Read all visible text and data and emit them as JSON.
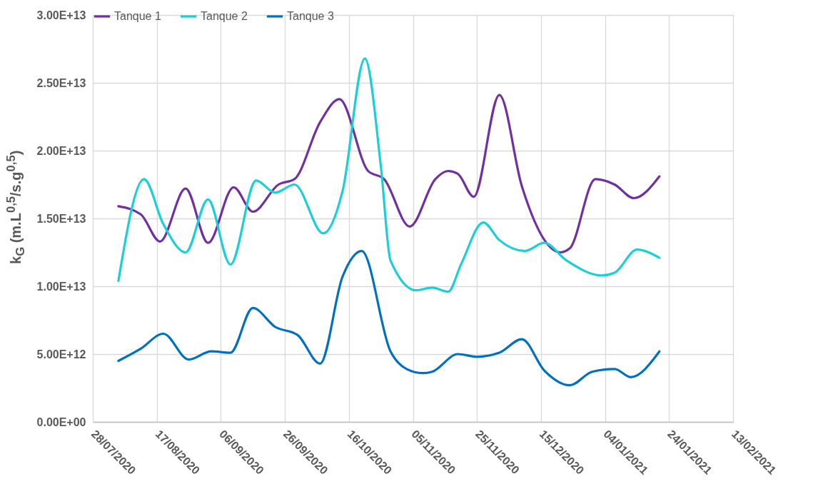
{
  "chart_data": {
    "type": "line",
    "ylabel": "k$_{G}$ (m.L$^{0,5}$/s.g$^{0,5}$)",
    "xlim": [
      "2020-07-28",
      "2021-02-13"
    ],
    "xticks": [
      {
        "value": "2020-07-28",
        "label": "28/07/2020"
      },
      {
        "value": "2020-08-17",
        "label": "17/08/2020"
      },
      {
        "value": "2020-09-06",
        "label": "06/09/2020"
      },
      {
        "value": "2020-09-26",
        "label": "26/09/2020"
      },
      {
        "value": "2020-10-16",
        "label": "16/10/2020"
      },
      {
        "value": "2020-11-05",
        "label": "05/11/2020"
      },
      {
        "value": "2020-11-25",
        "label": "25/11/2020"
      },
      {
        "value": "2020-12-15",
        "label": "15/12/2020"
      },
      {
        "value": "2021-01-04",
        "label": "04/01/2021"
      },
      {
        "value": "2021-01-24",
        "label": "24/01/2021"
      },
      {
        "value": "2021-02-13",
        "label": "13/02/2021"
      }
    ],
    "ylim": [
      0,
      30000000000000
    ],
    "yticks": [
      {
        "value": 0,
        "label": "0.00E+00"
      },
      {
        "value": 5000000000000,
        "label": "5.00E+12"
      },
      {
        "value": 10000000000000,
        "label": "1.00E+13"
      },
      {
        "value": 15000000000000,
        "label": "1.50E+13"
      },
      {
        "value": 20000000000000,
        "label": "2.00E+13"
      },
      {
        "value": 25000000000000,
        "label": "2.50E+13"
      },
      {
        "value": 30000000000000,
        "label": "3.00E+13"
      }
    ],
    "grid": true,
    "legend": "top",
    "marker": "none",
    "line_style": "solid",
    "series": [
      {
        "name": "Tanque 1",
        "color": "#7030a0",
        "x": [
          "2020-08-05",
          "2020-08-12",
          "2020-08-18",
          "2020-08-26",
          "2020-09-02",
          "2020-09-10",
          "2020-09-16",
          "2020-09-24",
          "2020-09-29",
          "2020-10-07",
          "2020-10-13",
          "2020-10-22",
          "2020-10-27",
          "2020-11-04",
          "2020-11-12",
          "2020-11-16",
          "2020-11-19",
          "2020-11-24",
          "2020-12-02",
          "2020-12-09",
          "2020-12-21",
          "2020-12-24",
          "2021-01-01",
          "2021-01-07",
          "2021-01-13",
          "2021-01-21"
        ],
        "values": [
          15900000000000.0,
          15300000000000.0,
          13300000000000.0,
          17200000000000.0,
          13200000000000.0,
          17300000000000.0,
          15500000000000.0,
          17500000000000.0,
          17900000000000.0,
          22100000000000.0,
          23800000000000.0,
          18500000000000.0,
          17900000000000.0,
          14400000000000.0,
          17900000000000.0,
          18500000000000.0,
          18300000000000.0,
          16600000000000.0,
          24100000000000.0,
          17400000000000.0,
          12500000000000.0,
          12800000000000.0,
          17900000000000.0,
          17500000000000.0,
          16500000000000.0,
          18100000000000.0
        ]
      },
      {
        "name": "Tanque 2",
        "color": "#1acfd6",
        "x": [
          "2020-08-05",
          "2020-08-13",
          "2020-08-19",
          "2020-08-26",
          "2020-09-02",
          "2020-09-09",
          "2020-09-17",
          "2020-09-23",
          "2020-09-29",
          "2020-10-08",
          "2020-10-14",
          "2020-10-21",
          "2020-10-26",
          "2020-10-29",
          "2020-11-06",
          "2020-11-11",
          "2020-11-16",
          "2020-11-20",
          "2020-11-27",
          "2020-12-02",
          "2020-12-10",
          "2020-12-16",
          "2020-12-23",
          "2021-01-03",
          "2021-01-07",
          "2021-01-14",
          "2021-01-21"
        ],
        "values": [
          10400000000000.0,
          17900000000000.0,
          14600000000000.0,
          12500000000000.0,
          16400000000000.0,
          11600000000000.0,
          17800000000000.0,
          16900000000000.0,
          17500000000000.0,
          13900000000000.0,
          17000000000000.0,
          26800000000000.0,
          18800000000000.0,
          11900000000000.0,
          9700000000000.0,
          9900000000000.0,
          9600000000000.0,
          11600000000000.0,
          14700000000000.0,
          13400000000000.0,
          12600000000000.0,
          13200000000000.0,
          11900000000000.0,
          10800000000000.0,
          11000000000000.0,
          12700000000000.0,
          12100000000000.0
        ]
      },
      {
        "name": "Tanque 3",
        "color": "#0070c0",
        "x": [
          "2020-08-05",
          "2020-08-12",
          "2020-08-19",
          "2020-08-27",
          "2020-09-03",
          "2020-09-09",
          "2020-09-16",
          "2020-09-23",
          "2020-09-30",
          "2020-10-07",
          "2020-10-14",
          "2020-10-20",
          "2020-10-29",
          "2020-11-03",
          "2020-11-08",
          "2020-11-11",
          "2020-11-19",
          "2020-11-25",
          "2020-12-02",
          "2020-12-09",
          "2020-12-16",
          "2020-12-24",
          "2020-12-31",
          "2021-01-07",
          "2021-01-12",
          "2021-01-21"
        ],
        "values": [
          4500000000000.0,
          5400000000000.0,
          6500000000000.0,
          4600000000000.0,
          5200000000000.0,
          5100000000000.0,
          8400000000000.0,
          7000000000000.0,
          6400000000000.0,
          4300000000000.0,
          10700000000000.0,
          12600000000000.0,
          5200000000000.0,
          3900000000000.0,
          3600000000000.0,
          3700000000000.0,
          5000000000000.0,
          4800000000000.0,
          5100000000000.0,
          6100000000000.0,
          3800000000000.0,
          2700000000000.0,
          3700000000000.0,
          3900000000000.0,
          3300000000000.0,
          5200000000000.0
        ]
      }
    ]
  }
}
